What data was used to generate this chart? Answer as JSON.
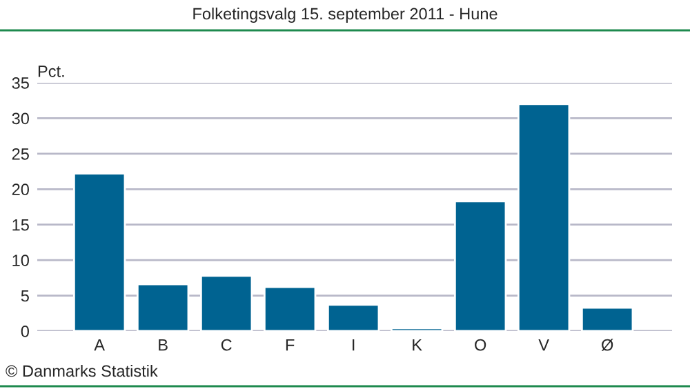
{
  "chart_data": {
    "type": "bar",
    "title": "Folketingsvalg 15. september 2011 - Hune",
    "ylabel": "Pct.",
    "categories": [
      "A",
      "B",
      "C",
      "F",
      "I",
      "K",
      "O",
      "V",
      "Ø"
    ],
    "values": [
      22.2,
      6.6,
      7.8,
      6.2,
      3.7,
      0.4,
      18.3,
      32.0,
      3.3
    ],
    "color": "#006391",
    "ylim": [
      0,
      35
    ],
    "yticks": [
      0,
      5,
      10,
      15,
      20,
      25,
      30,
      35
    ],
    "grid": "y",
    "annotations": [
      "© Danmarks Statistik"
    ]
  }
}
